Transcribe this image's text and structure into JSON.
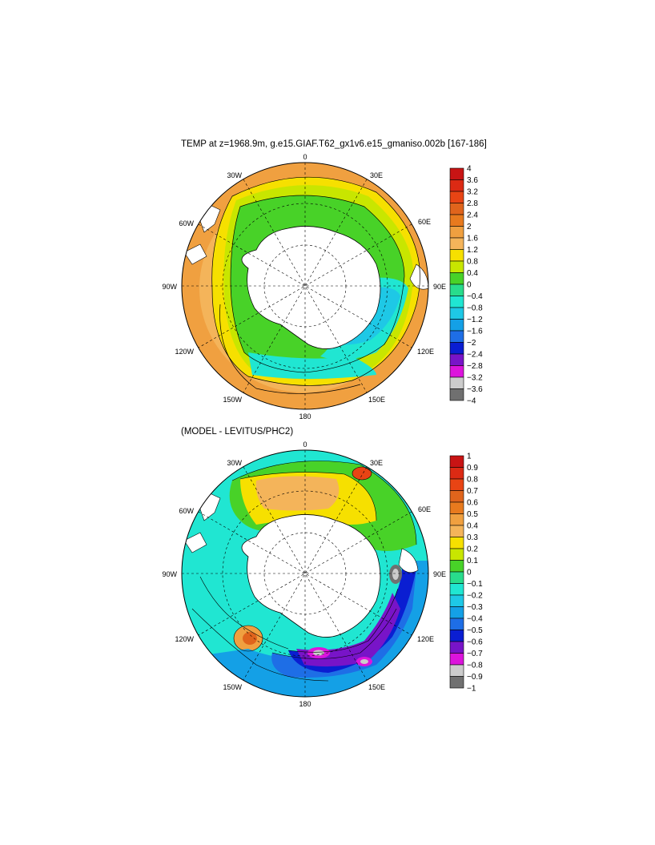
{
  "chart_data": [
    {
      "type": "heatmap",
      "projection": "south polar stereographic",
      "title": "TEMP at z=1968.9m, g.e15.GIAF.T62_gx1v6.e15_gmaniso.002b [167-186]",
      "longitude_labels": [
        "0",
        "30E",
        "60E",
        "90E",
        "120E",
        "150E",
        "180",
        "150W",
        "120W",
        "90W",
        "60W",
        "30W"
      ],
      "colorbar": {
        "levels": [
          "4",
          "3.6",
          "3.2",
          "2.8",
          "2.4",
          "2",
          "1.6",
          "1.2",
          "0.8",
          "0.4",
          "0",
          "−0.4",
          "−0.8",
          "−1.2",
          "−1.6",
          "−2",
          "−2.4",
          "−2.8",
          "−3.2",
          "−3.6",
          "−4"
        ],
        "colors": [
          "#c81414",
          "#dc2a14",
          "#e84414",
          "#e0641c",
          "#e87a1e",
          "#f0a040",
          "#f4b45a",
          "#f6e000",
          "#c8e600",
          "#48d228",
          "#28dc8c",
          "#20e6d2",
          "#1ec8e6",
          "#14a0e6",
          "#1e6ee6",
          "#0a1ed2",
          "#7814c8",
          "#dc14dc",
          "#cccccc",
          "#707070"
        ]
      },
      "field_notes": "Warm (1.6 to 2.4) in the outer ring north of the ACC, green/yellow 0 to 1.2 band in the ACC, cyan -0.4 to -0.8 near the Antarctic margin in the Indian sector."
    },
    {
      "type": "heatmap",
      "projection": "south polar stereographic",
      "title": "(MODEL - LEVITUS/PHC2)",
      "longitude_labels": [
        "0",
        "30E",
        "60E",
        "90E",
        "120E",
        "150E",
        "180",
        "150W",
        "120W",
        "90W",
        "60W",
        "30W"
      ],
      "colorbar": {
        "levels": [
          "1",
          "0.9",
          "0.8",
          "0.7",
          "0.6",
          "0.5",
          "0.4",
          "0.3",
          "0.2",
          "0.1",
          "0",
          "−0.1",
          "−0.2",
          "−0.3",
          "−0.4",
          "−0.5",
          "−0.6",
          "−0.7",
          "−0.8",
          "−0.9",
          "−1"
        ],
        "colors": [
          "#c81414",
          "#dc2a14",
          "#e84414",
          "#e0641c",
          "#e87a1e",
          "#f0a040",
          "#f4b45a",
          "#f6e000",
          "#c8e600",
          "#48d228",
          "#28dc8c",
          "#20e6d2",
          "#1ec8e6",
          "#14a0e6",
          "#1e6ee6",
          "#0a1ed2",
          "#7814c8",
          "#dc14dc",
          "#cccccc",
          "#707070"
        ]
      },
      "field_notes": "Positive bias (0.2 to 0.6) in the Atlantic/Weddell sector, negative bias (-0.4 to -1) along 120E-180 south of Australia, near zero elsewhere."
    }
  ]
}
